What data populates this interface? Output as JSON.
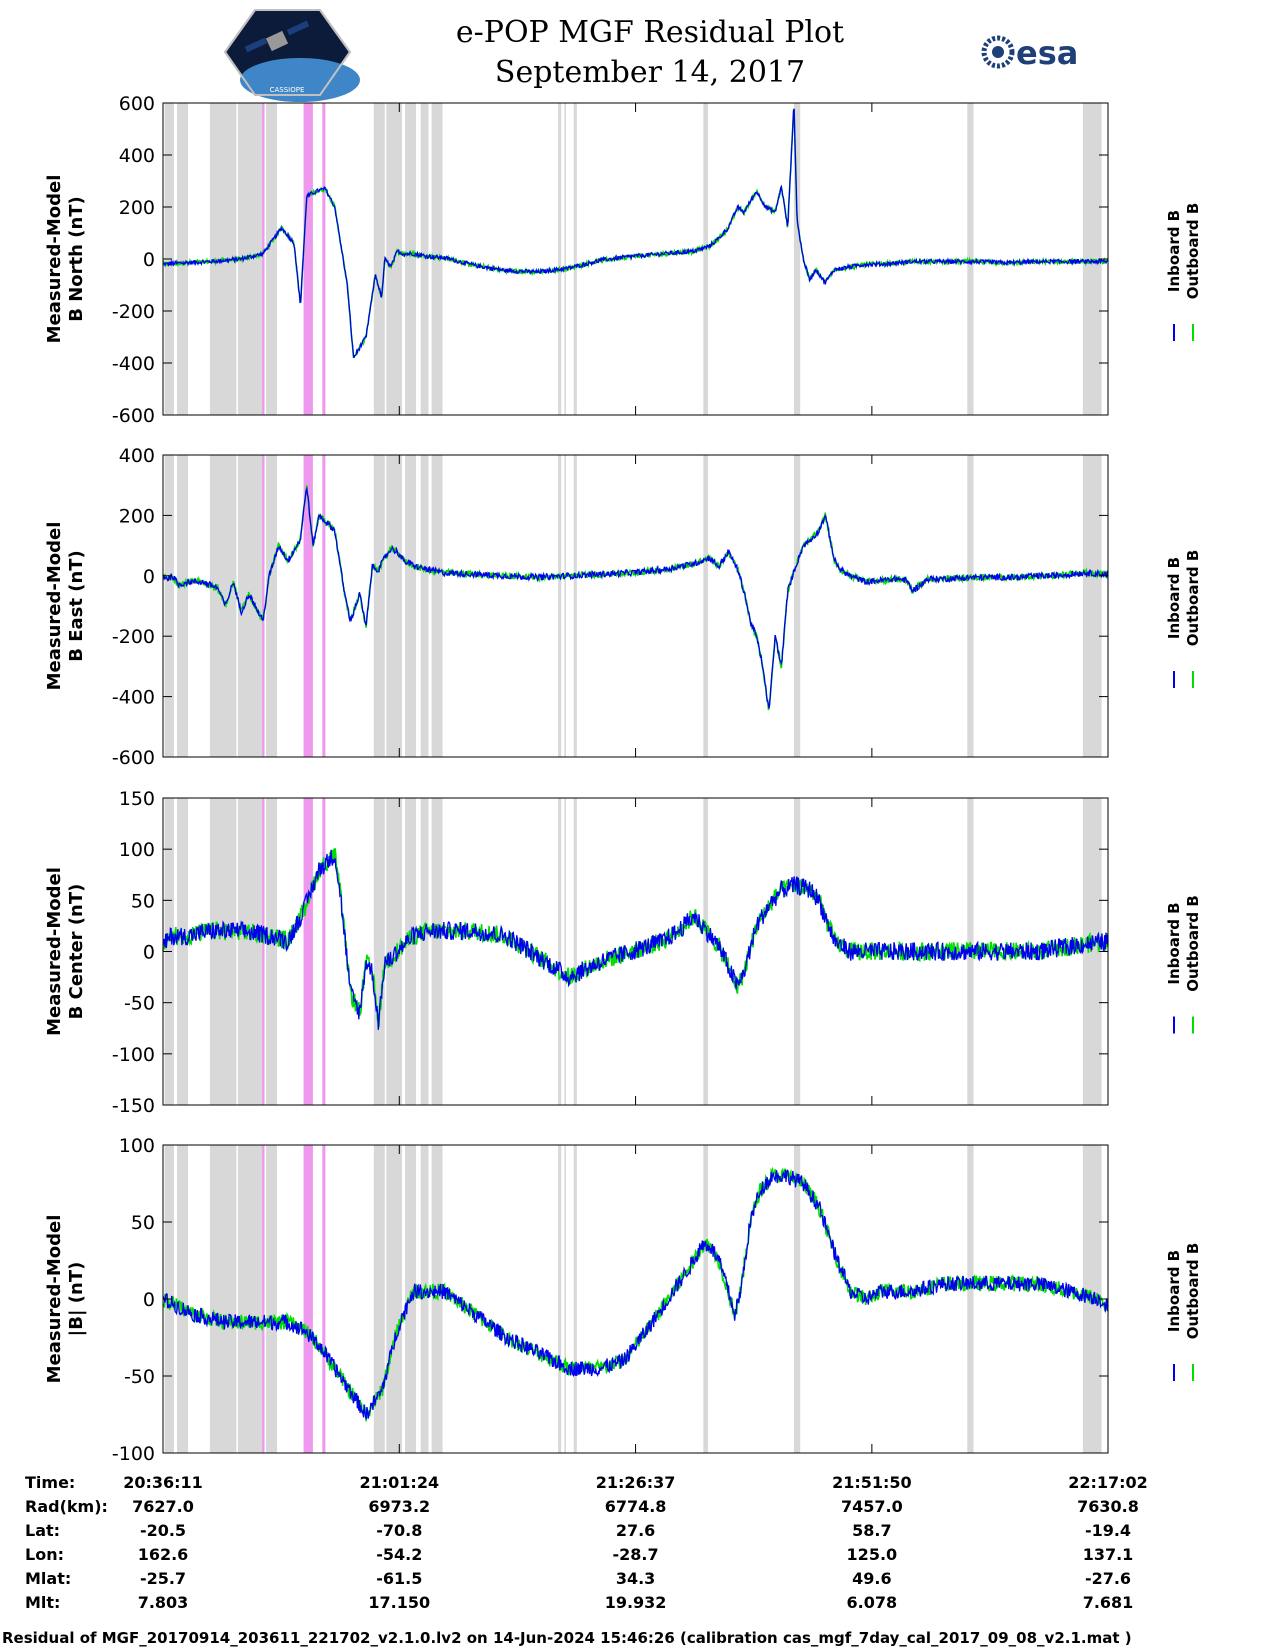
{
  "header": {
    "title_line1": "e-POP MGF Residual Plot",
    "title_line2": "September 14, 2017",
    "mission_logo_text": "CASSIOPE",
    "esa_logo_text": "esa"
  },
  "chart_data": {
    "type": "line",
    "x_range": [
      0,
      6051
    ],
    "x_ticks": [
      0,
      1513,
      3026,
      4539,
      6051
    ],
    "gray_bands": [
      [
        10,
        70
      ],
      [
        90,
        160
      ],
      [
        300,
        470
      ],
      [
        480,
        640
      ],
      [
        660,
        730
      ],
      [
        1350,
        1420
      ],
      [
        1430,
        1530
      ],
      [
        1550,
        1620
      ],
      [
        1650,
        1700
      ],
      [
        1720,
        1790
      ],
      [
        2530,
        2550
      ],
      [
        2570,
        2580
      ],
      [
        2630,
        2650
      ],
      [
        3460,
        3490
      ],
      [
        4040,
        4080
      ],
      [
        5150,
        5190
      ],
      [
        5890,
        6010
      ]
    ],
    "magenta_bands": [
      [
        635,
        650
      ],
      [
        900,
        960
      ],
      [
        1020,
        1040
      ]
    ],
    "legend": [
      "Inboard B",
      "Outboard B"
    ],
    "series_colors": {
      "inboard": "#0000ee",
      "outboard": "#00dd00",
      "gray_band": "#d8d8d8",
      "magenta_band": "#ee99ee"
    },
    "panels": [
      {
        "ylabel_line1": "Measured-Model",
        "ylabel_line2": "B North (nT)",
        "ylim": [
          -600,
          600
        ],
        "yticks": [
          -600,
          -400,
          -200,
          0,
          200,
          400,
          600
        ],
        "noise": 8,
        "x": [
          0,
          120,
          300,
          500,
          640,
          700,
          760,
          840,
          880,
          920,
          980,
          1040,
          1100,
          1180,
          1220,
          1300,
          1360,
          1400,
          1420,
          1460,
          1500,
          1540,
          1600,
          1700,
          1800,
          1900,
          2000,
          2200,
          2400,
          2600,
          2800,
          3000,
          3200,
          3400,
          3500,
          3560,
          3620,
          3680,
          3720,
          3800,
          3860,
          3920,
          3960,
          4000,
          4040,
          4060,
          4100,
          4140,
          4180,
          4240,
          4300,
          4400,
          4500,
          4600,
          4800,
          5000,
          5200,
          5400,
          5600,
          5800,
          6051
        ],
        "y": [
          -20,
          -15,
          -10,
          0,
          20,
          70,
          120,
          60,
          -180,
          240,
          260,
          270,
          200,
          -100,
          -380,
          -300,
          -60,
          -150,
          0,
          -30,
          30,
          20,
          20,
          10,
          5,
          -10,
          -25,
          -45,
          -50,
          -35,
          -5,
          10,
          20,
          30,
          50,
          80,
          120,
          200,
          180,
          260,
          200,
          180,
          280,
          120,
          600,
          150,
          0,
          -80,
          -40,
          -90,
          -40,
          -30,
          -20,
          -20,
          -10,
          -10,
          -10,
          -15,
          -10,
          -10,
          -10
        ]
      },
      {
        "ylabel_line1": "Measured-Model",
        "ylabel_line2": "B East (nT)",
        "ylim": [
          -600,
          400
        ],
        "yticks": [
          -600,
          -400,
          -200,
          0,
          200,
          400
        ],
        "noise": 10,
        "x": [
          0,
          30,
          60,
          100,
          160,
          250,
          350,
          400,
          450,
          500,
          550,
          640,
          680,
          740,
          800,
          880,
          920,
          960,
          1000,
          1040,
          1100,
          1160,
          1200,
          1260,
          1300,
          1340,
          1380,
          1420,
          1460,
          1500,
          1540,
          1620,
          1700,
          1800,
          2000,
          2200,
          2400,
          2600,
          2800,
          3000,
          3200,
          3400,
          3500,
          3560,
          3620,
          3680,
          3720,
          3760,
          3800,
          3840,
          3880,
          3920,
          3960,
          4000,
          4050,
          4100,
          4150,
          4200,
          4240,
          4280,
          4300,
          4340,
          4400,
          4500,
          4600,
          4700,
          4760,
          4800,
          4900,
          5000,
          5200,
          5400,
          5500,
          5600,
          5700,
          5800,
          5900,
          6051
        ],
        "y": [
          0,
          -10,
          0,
          -30,
          -20,
          -20,
          -40,
          -100,
          -20,
          -120,
          -60,
          -150,
          0,
          100,
          50,
          120,
          300,
          100,
          200,
          180,
          150,
          -50,
          -150,
          -60,
          -170,
          30,
          20,
          60,
          90,
          80,
          50,
          30,
          20,
          10,
          5,
          0,
          -5,
          0,
          5,
          10,
          20,
          40,
          60,
          30,
          80,
          20,
          -50,
          -150,
          -200,
          -300,
          -450,
          -200,
          -300,
          -50,
          30,
          100,
          120,
          150,
          200,
          100,
          50,
          20,
          0,
          -20,
          -15,
          -10,
          -15,
          -50,
          -10,
          -10,
          -5,
          -5,
          -5,
          0,
          0,
          5,
          10,
          5
        ]
      },
      {
        "ylabel_line1": "Measured-Model",
        "ylabel_line2": "B Center (nT)",
        "ylim": [
          -150,
          150
        ],
        "yticks": [
          -150,
          -100,
          -50,
          0,
          50,
          100,
          150
        ],
        "noise": 9,
        "x": [
          0,
          50,
          150,
          300,
          500,
          700,
          800,
          900,
          1000,
          1100,
          1140,
          1200,
          1260,
          1300,
          1340,
          1380,
          1420,
          1440,
          1500,
          1600,
          1700,
          1800,
          2000,
          2200,
          2400,
          2600,
          2800,
          3000,
          3200,
          3300,
          3400,
          3480,
          3560,
          3620,
          3680,
          3720,
          3800,
          3880,
          3960,
          4050,
          4150,
          4200,
          4300,
          4400,
          4600,
          4800,
          5000,
          5200,
          5400,
          5600,
          5800,
          6051
        ],
        "y": [
          5,
          15,
          15,
          20,
          20,
          15,
          10,
          40,
          80,
          95,
          50,
          -40,
          -60,
          -10,
          -20,
          -70,
          -10,
          -10,
          0,
          15,
          20,
          20,
          20,
          15,
          -5,
          -25,
          -10,
          0,
          10,
          20,
          35,
          20,
          5,
          -15,
          -35,
          -20,
          25,
          45,
          60,
          65,
          60,
          50,
          10,
          0,
          0,
          0,
          0,
          0,
          0,
          0,
          5,
          10
        ]
      },
      {
        "ylabel_line1": "Measured-Model",
        "ylabel_line2": "|B| (nT)",
        "ylim": [
          -100,
          100
        ],
        "yticks": [
          -100,
          -50,
          0,
          50,
          100
        ],
        "noise": 5,
        "x": [
          0,
          200,
          400,
          600,
          800,
          900,
          1000,
          1100,
          1200,
          1300,
          1400,
          1500,
          1600,
          1800,
          2000,
          2200,
          2400,
          2600,
          2800,
          2950,
          3100,
          3200,
          3300,
          3400,
          3450,
          3500,
          3560,
          3620,
          3660,
          3700,
          3760,
          3820,
          3900,
          4000,
          4100,
          4200,
          4300,
          4400,
          4500,
          4600,
          4800,
          5000,
          5200,
          5400,
          5600,
          5800,
          6000,
          6051
        ],
        "y": [
          0,
          -10,
          -15,
          -15,
          -15,
          -20,
          -30,
          -45,
          -60,
          -75,
          -60,
          -20,
          5,
          5,
          -10,
          -25,
          -35,
          -45,
          -45,
          -40,
          -20,
          -5,
          10,
          25,
          35,
          35,
          25,
          5,
          -10,
          5,
          50,
          70,
          80,
          80,
          75,
          60,
          30,
          5,
          0,
          5,
          5,
          10,
          10,
          10,
          10,
          5,
          0,
          -5
        ]
      }
    ]
  },
  "table": {
    "labels": [
      "Time:",
      "Rad(km):",
      "Lat:",
      "Lon:",
      "Mlat:",
      "Mlt:"
    ],
    "columns": [
      [
        "20:36:11",
        "7627.0",
        "-20.5",
        "162.6",
        "-25.7",
        "7.803"
      ],
      [
        "21:01:24",
        "6973.2",
        "-70.8",
        "-54.2",
        "-61.5",
        "17.150"
      ],
      [
        "21:26:37",
        "6774.8",
        "27.6",
        "-28.7",
        "34.3",
        "19.932"
      ],
      [
        "21:51:50",
        "7457.0",
        "58.7",
        "125.0",
        "49.6",
        "6.078"
      ],
      [
        "22:17:02",
        "7630.8",
        "-19.4",
        "137.1",
        "-27.6",
        "7.681"
      ]
    ]
  },
  "footer": "Residual of MGF_20170914_203611_221702_v2.1.0.lv2 on 14-Jun-2024 15:46:26 (calibration cas_mgf_7day_cal_2017_09_08_v2.1.mat )"
}
